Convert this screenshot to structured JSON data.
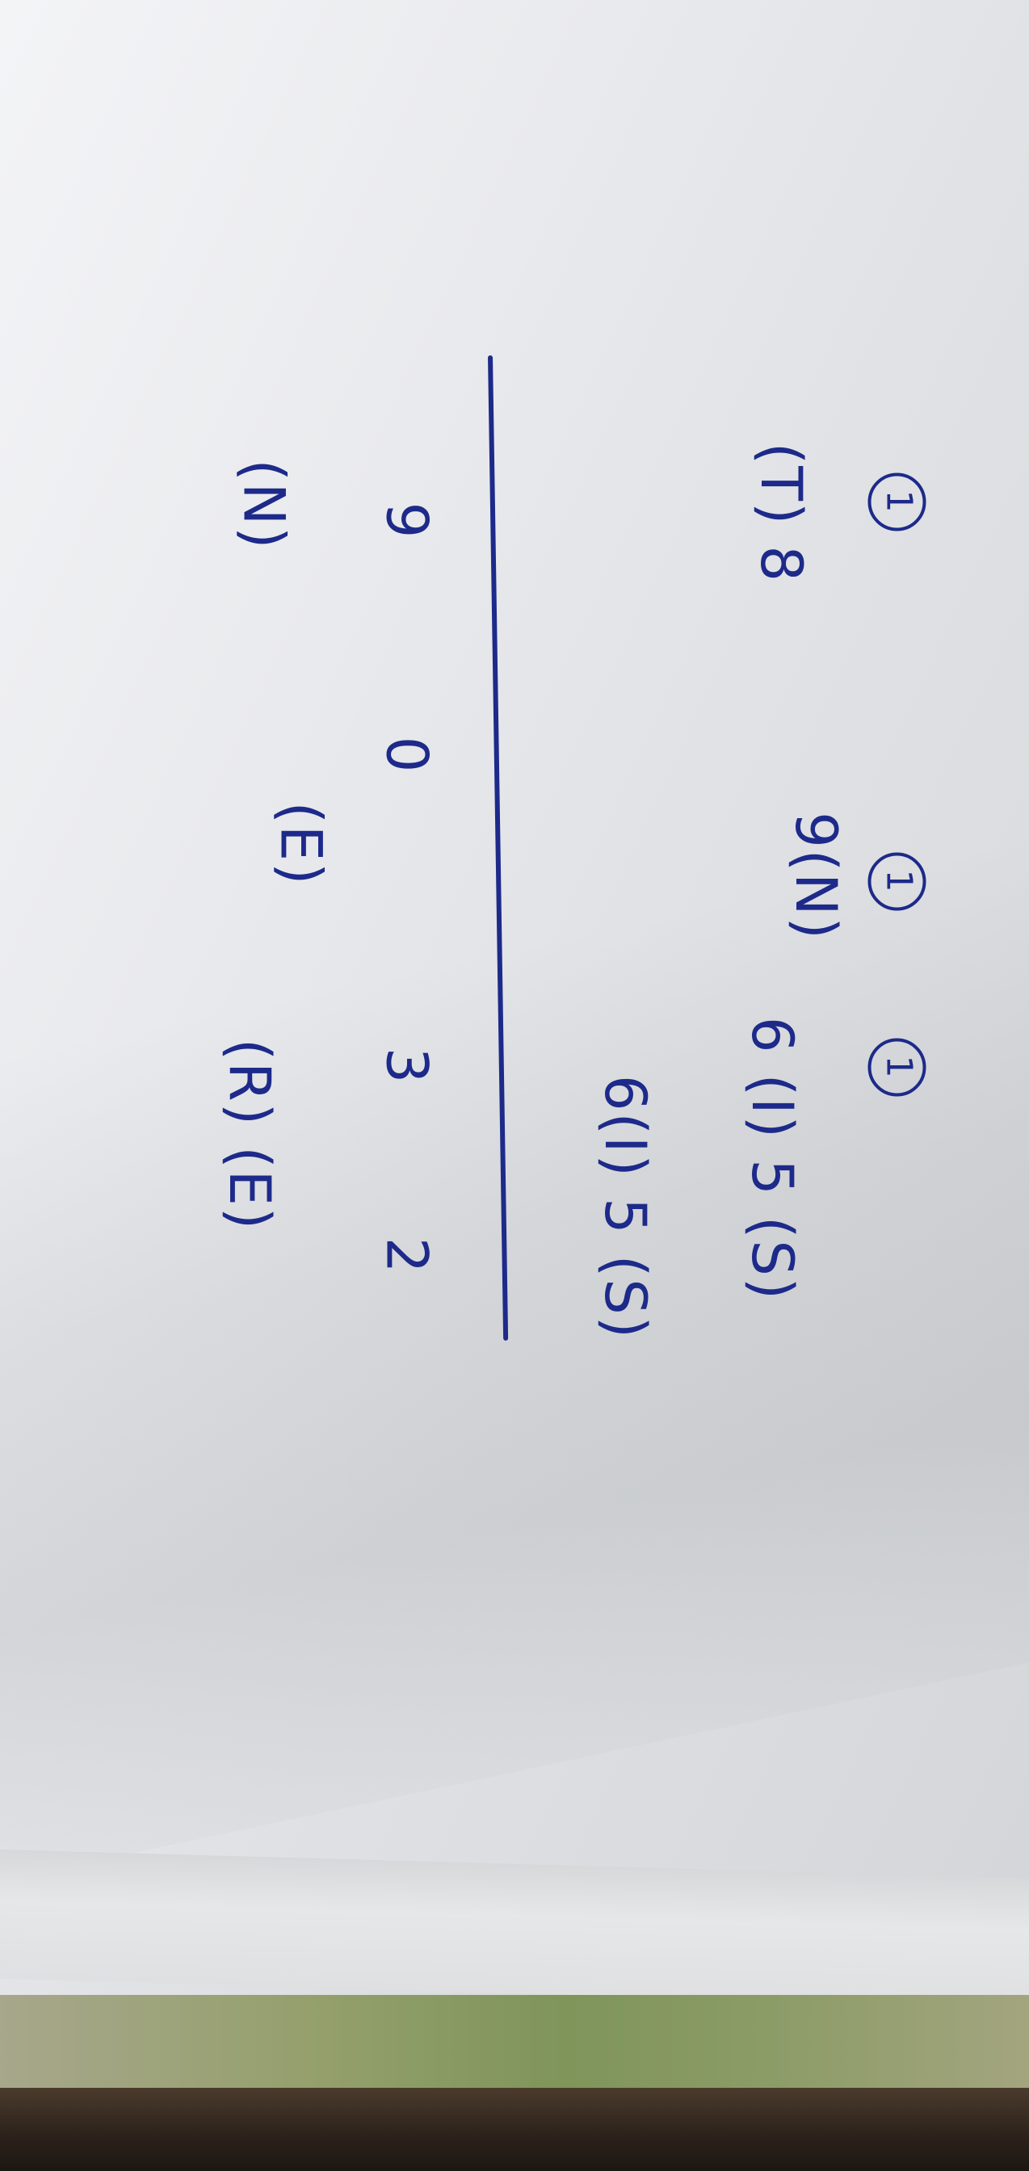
{
  "note": {
    "row_top": {
      "col1_marker": "1",
      "col2_marker": "1",
      "col3_marker": "1"
    },
    "row_values": {
      "col1": "(T) 8",
      "col2": "9(N)",
      "col3": "6 (I) 5 (S)"
    },
    "row_mid": {
      "col3": "6(I) 5 (S)"
    },
    "row_result": {
      "col1": "9",
      "col2": "0",
      "col3a": "3",
      "col3b": "2"
    },
    "row_letters": {
      "col1": "(N)",
      "col2": "(E)",
      "col3": "(R) (E)"
    }
  },
  "colors": {
    "ink": "#1d2a8a",
    "paper": "#e6e7ea"
  }
}
